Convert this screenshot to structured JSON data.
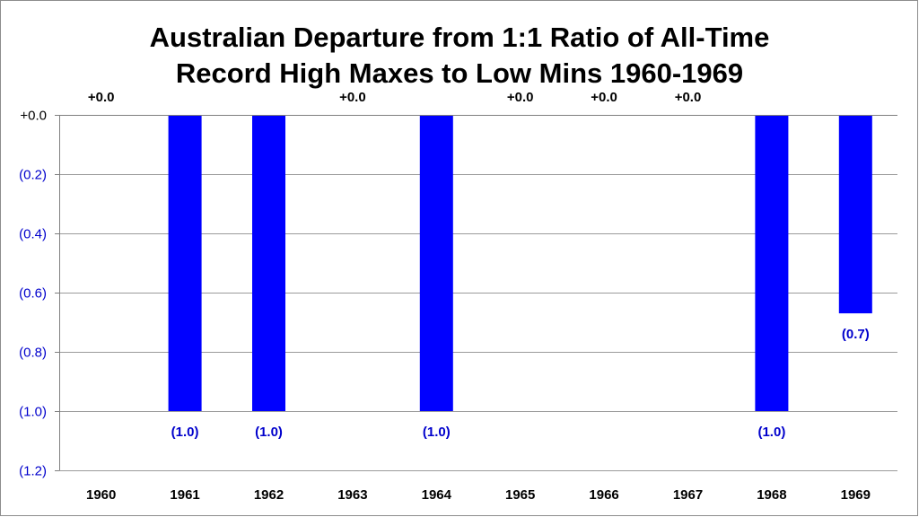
{
  "chart_data": {
    "type": "bar",
    "title_lines": [
      "Australian Departure from 1:1 Ratio of All-Time",
      "Record High Maxes to Low Mins 1960-1969"
    ],
    "categories": [
      "1960",
      "1961",
      "1962",
      "1963",
      "1964",
      "1965",
      "1966",
      "1967",
      "1968",
      "1969"
    ],
    "values": [
      0.0,
      -1.0,
      -1.0,
      0.0,
      -1.0,
      0.0,
      0.0,
      0.0,
      -1.0,
      -0.67
    ],
    "data_labels": [
      "+0.0",
      "(1.0)",
      "(1.0)",
      "+0.0",
      "(1.0)",
      "+0.0",
      "+0.0",
      "+0.0",
      "(1.0)",
      "(0.7)"
    ],
    "ylim": [
      -1.2,
      0.0
    ],
    "yticks": [
      0.0,
      -0.2,
      -0.4,
      -0.6,
      -0.8,
      -1.0,
      -1.2
    ],
    "ytick_labels": [
      "+0.0",
      "(0.2)",
      "(0.4)",
      "(0.6)",
      "(0.8)",
      "(1.0)",
      "(1.2)"
    ],
    "grid": true,
    "legend": false,
    "colors": {
      "bar": "#0000ff",
      "negative_label": "#0000cc",
      "zero_label": "#000000"
    }
  }
}
